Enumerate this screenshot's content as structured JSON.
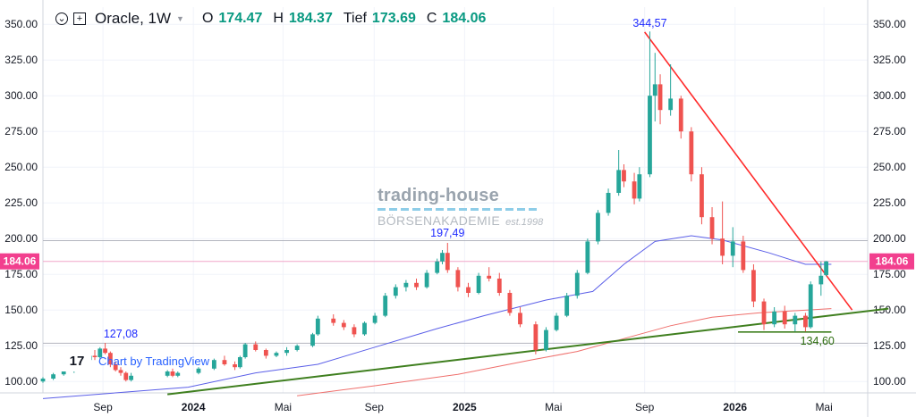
{
  "header": {
    "symbol": "Oracle, 1W",
    "open_label": "O",
    "open_value": "174.47",
    "high_label": "H",
    "high_value": "184.37",
    "low_label": "Tief",
    "low_value": "173.69",
    "close_label": "C",
    "close_value": "184.06"
  },
  "watermark": {
    "title": "trading-house",
    "subtitle": "BÖRSENAKADEMIE",
    "est": "est.1998"
  },
  "tv_badge": {
    "logo": "17",
    "text": "Chart by TradingView"
  },
  "colors": {
    "up": "#26a69a",
    "down": "#ef5350",
    "ma_blue": "#5b5fe8",
    "ma_red": "#ef6f6c",
    "resistance": "#ff2a2a",
    "support": "#3f7f1f",
    "price_line": "#f2a6c8",
    "price_label": "#f23f8e",
    "annotation_blue": "#1f2bff",
    "annotation_green": "#2e6e10"
  },
  "chart_data": {
    "type": "candlestick",
    "title": "Oracle, 1W",
    "last_price": 184.06,
    "ylim": [
      92,
      362
    ],
    "y_ticks": [
      "100.00",
      "125.00",
      "150.00",
      "175.00",
      "200.00",
      "225.00",
      "250.00",
      "275.00",
      "300.00",
      "325.00",
      "350.00"
    ],
    "x_tick_labels": [
      "Sep",
      "2024",
      "Mai",
      "Sep",
      "2025",
      "Mai",
      "Sep",
      "2026",
      "Mai"
    ],
    "x_axis_start": "2023-06-12",
    "x_axis_end": "2026-06-29",
    "x_ticks": [
      {
        "date": "2023-09-01",
        "label": "Sep"
      },
      {
        "date": "2024-01-01",
        "label": "2024"
      },
      {
        "date": "2024-05-01",
        "label": "Mai"
      },
      {
        "date": "2024-09-01",
        "label": "Sep"
      },
      {
        "date": "2025-01-01",
        "label": "2025"
      },
      {
        "date": "2025-05-01",
        "label": "Mai"
      },
      {
        "date": "2025-09-01",
        "label": "Sep"
      },
      {
        "date": "2026-01-01",
        "label": "2026"
      },
      {
        "date": "2026-05-01",
        "label": "Mai"
      }
    ],
    "annotations": [
      {
        "text": "344,57",
        "date": "2025-09-08",
        "value": 344.57,
        "color": "blue"
      },
      {
        "text": "197,49",
        "date": "2024-12-09",
        "value": 197.49,
        "color": "blue"
      },
      {
        "text": "127,08",
        "date": "2023-09-25",
        "value": 127.08,
        "color": "blue"
      },
      {
        "text": "134,60",
        "date": "2026-03-30",
        "value": 134.6,
        "color": "green"
      }
    ],
    "horizontal_lines": [
      {
        "value": 198.6,
        "color": "gray"
      },
      {
        "value": 126.8,
        "color": "gray"
      },
      {
        "value": 184.06,
        "color": "pink"
      }
    ],
    "trendlines": [
      {
        "name": "resistance",
        "from": [
          "2025-09-01",
          344.57
        ],
        "to": [
          "2026-06-08",
          150.0
        ]
      },
      {
        "name": "support",
        "from": [
          "2023-11-27",
          91.0
        ],
        "to": [
          "2026-07-27",
          151.0
        ]
      },
      {
        "name": "low-shelf",
        "from": [
          "2026-01-05",
          134.6
        ],
        "to": [
          "2026-05-11",
          134.6
        ]
      }
    ],
    "moving_averages": [
      {
        "color": "blue",
        "points": [
          [
            "2023-06-12",
            88
          ],
          [
            "2023-12-25",
            96
          ],
          [
            "2024-03-25",
            106
          ],
          [
            "2024-06-17",
            112
          ],
          [
            "2024-09-02",
            124
          ],
          [
            "2024-11-25",
            137
          ],
          [
            "2025-01-27",
            146
          ],
          [
            "2025-04-21",
            157
          ],
          [
            "2025-06-23",
            163
          ],
          [
            "2025-08-04",
            182
          ],
          [
            "2025-09-15",
            198
          ],
          [
            "2025-11-03",
            202
          ],
          [
            "2025-12-15",
            199
          ],
          [
            "2026-02-16",
            190
          ],
          [
            "2026-04-06",
            182
          ],
          [
            "2026-05-11",
            182
          ]
        ]
      },
      {
        "color": "red",
        "points": [
          [
            "2024-05-20",
            90
          ],
          [
            "2024-09-02",
            97
          ],
          [
            "2024-12-23",
            105
          ],
          [
            "2025-03-31",
            115
          ],
          [
            "2025-06-02",
            121
          ],
          [
            "2025-08-04",
            130
          ],
          [
            "2025-10-06",
            139
          ],
          [
            "2025-12-01",
            145
          ],
          [
            "2026-02-02",
            148
          ],
          [
            "2026-05-11",
            151
          ]
        ]
      }
    ],
    "series": [
      {
        "o": 100,
        "h": 103,
        "l": 99,
        "c": 102,
        "d": "2023-06-12"
      },
      {
        "o": 102,
        "h": 106,
        "l": 101,
        "c": 105,
        "d": "2023-06-26"
      },
      {
        "o": 105,
        "h": 108,
        "l": 104,
        "c": 107,
        "d": "2023-07-10"
      },
      {
        "o": 107,
        "h": 114,
        "l": 106,
        "c": 112,
        "d": "2023-07-24"
      },
      {
        "o": 112,
        "h": 116,
        "l": 110,
        "c": 115,
        "d": "2023-08-07"
      },
      {
        "o": 115,
        "h": 120,
        "l": 112,
        "c": 118,
        "d": "2023-08-14"
      },
      {
        "o": 118,
        "h": 122,
        "l": 115,
        "c": 117,
        "d": "2023-08-21"
      },
      {
        "o": 117,
        "h": 124,
        "l": 116,
        "c": 123,
        "d": "2023-08-28"
      },
      {
        "o": 123,
        "h": 127,
        "l": 119,
        "c": 120,
        "d": "2023-09-04"
      },
      {
        "o": 120,
        "h": 121,
        "l": 110,
        "c": 112,
        "d": "2023-09-11"
      },
      {
        "o": 112,
        "h": 114,
        "l": 107,
        "c": 108,
        "d": "2023-09-18"
      },
      {
        "o": 108,
        "h": 110,
        "l": 104,
        "c": 106,
        "d": "2023-09-25"
      },
      {
        "o": 106,
        "h": 107,
        "l": 100,
        "c": 101,
        "d": "2023-10-02"
      },
      {
        "o": 101,
        "h": 106,
        "l": 100,
        "c": 104,
        "d": "2023-10-09"
      },
      {
        "o": 104,
        "h": 108,
        "l": 103,
        "c": 107,
        "d": "2023-11-27"
      },
      {
        "o": 107,
        "h": 109,
        "l": 103,
        "c": 104,
        "d": "2023-12-04"
      },
      {
        "o": 104,
        "h": 107,
        "l": 103,
        "c": 106,
        "d": "2023-12-11"
      },
      {
        "o": 106,
        "h": 110,
        "l": 105,
        "c": 109,
        "d": "2024-01-08"
      },
      {
        "o": 109,
        "h": 116,
        "l": 108,
        "c": 115,
        "d": "2024-01-29"
      },
      {
        "o": 115,
        "h": 118,
        "l": 111,
        "c": 112,
        "d": "2024-02-12"
      },
      {
        "o": 112,
        "h": 114,
        "l": 108,
        "c": 110,
        "d": "2024-02-26"
      },
      {
        "o": 110,
        "h": 118,
        "l": 109,
        "c": 117,
        "d": "2024-03-04"
      },
      {
        "o": 117,
        "h": 127,
        "l": 116,
        "c": 126,
        "d": "2024-03-11"
      },
      {
        "o": 126,
        "h": 128,
        "l": 121,
        "c": 122,
        "d": "2024-03-25"
      },
      {
        "o": 122,
        "h": 123,
        "l": 116,
        "c": 118,
        "d": "2024-04-08"
      },
      {
        "o": 118,
        "h": 121,
        "l": 117,
        "c": 120,
        "d": "2024-04-22"
      },
      {
        "o": 120,
        "h": 124,
        "l": 118,
        "c": 122,
        "d": "2024-05-06"
      },
      {
        "o": 122,
        "h": 126,
        "l": 121,
        "c": 125,
        "d": "2024-05-20"
      },
      {
        "o": 125,
        "h": 134,
        "l": 124,
        "c": 133,
        "d": "2024-06-10"
      },
      {
        "o": 133,
        "h": 146,
        "l": 132,
        "c": 144,
        "d": "2024-06-17"
      },
      {
        "o": 144,
        "h": 147,
        "l": 139,
        "c": 141,
        "d": "2024-07-08"
      },
      {
        "o": 141,
        "h": 143,
        "l": 136,
        "c": 138,
        "d": "2024-07-22"
      },
      {
        "o": 138,
        "h": 140,
        "l": 131,
        "c": 133,
        "d": "2024-08-05"
      },
      {
        "o": 133,
        "h": 142,
        "l": 132,
        "c": 141,
        "d": "2024-08-19"
      },
      {
        "o": 141,
        "h": 148,
        "l": 140,
        "c": 146,
        "d": "2024-09-02"
      },
      {
        "o": 146,
        "h": 162,
        "l": 145,
        "c": 160,
        "d": "2024-09-16"
      },
      {
        "o": 160,
        "h": 168,
        "l": 158,
        "c": 166,
        "d": "2024-09-30"
      },
      {
        "o": 166,
        "h": 171,
        "l": 163,
        "c": 169,
        "d": "2024-10-14"
      },
      {
        "o": 169,
        "h": 172,
        "l": 164,
        "c": 166,
        "d": "2024-10-28"
      },
      {
        "o": 166,
        "h": 178,
        "l": 165,
        "c": 176,
        "d": "2024-11-11"
      },
      {
        "o": 176,
        "h": 186,
        "l": 175,
        "c": 184,
        "d": "2024-11-25"
      },
      {
        "o": 184,
        "h": 192,
        "l": 182,
        "c": 190,
        "d": "2024-12-02"
      },
      {
        "o": 190,
        "h": 197,
        "l": 176,
        "c": 178,
        "d": "2024-12-09"
      },
      {
        "o": 178,
        "h": 180,
        "l": 163,
        "c": 166,
        "d": "2024-12-23"
      },
      {
        "o": 166,
        "h": 169,
        "l": 159,
        "c": 162,
        "d": "2025-01-06"
      },
      {
        "o": 162,
        "h": 176,
        "l": 161,
        "c": 174,
        "d": "2025-01-20"
      },
      {
        "o": 174,
        "h": 180,
        "l": 170,
        "c": 172,
        "d": "2025-02-03"
      },
      {
        "o": 172,
        "h": 176,
        "l": 160,
        "c": 162,
        "d": "2025-02-17"
      },
      {
        "o": 162,
        "h": 164,
        "l": 146,
        "c": 148,
        "d": "2025-03-03"
      },
      {
        "o": 148,
        "h": 152,
        "l": 138,
        "c": 140,
        "d": "2025-03-17"
      },
      {
        "o": 140,
        "h": 142,
        "l": 119,
        "c": 122,
        "d": "2025-04-07"
      },
      {
        "o": 122,
        "h": 138,
        "l": 121,
        "c": 136,
        "d": "2025-04-21"
      },
      {
        "o": 136,
        "h": 148,
        "l": 135,
        "c": 146,
        "d": "2025-05-05"
      },
      {
        "o": 146,
        "h": 162,
        "l": 145,
        "c": 160,
        "d": "2025-05-19"
      },
      {
        "o": 160,
        "h": 178,
        "l": 158,
        "c": 176,
        "d": "2025-06-02"
      },
      {
        "o": 176,
        "h": 200,
        "l": 175,
        "c": 198,
        "d": "2025-06-16"
      },
      {
        "o": 198,
        "h": 220,
        "l": 196,
        "c": 218,
        "d": "2025-06-30"
      },
      {
        "o": 218,
        "h": 235,
        "l": 216,
        "c": 232,
        "d": "2025-07-14"
      },
      {
        "o": 232,
        "h": 262,
        "l": 230,
        "c": 248,
        "d": "2025-07-28"
      },
      {
        "o": 248,
        "h": 252,
        "l": 236,
        "c": 240,
        "d": "2025-08-04"
      },
      {
        "o": 240,
        "h": 246,
        "l": 224,
        "c": 228,
        "d": "2025-08-18"
      },
      {
        "o": 228,
        "h": 250,
        "l": 226,
        "c": 245,
        "d": "2025-08-25"
      },
      {
        "o": 245,
        "h": 345,
        "l": 243,
        "c": 300,
        "d": "2025-09-08"
      },
      {
        "o": 300,
        "h": 330,
        "l": 282,
        "c": 308,
        "d": "2025-09-15"
      },
      {
        "o": 308,
        "h": 315,
        "l": 280,
        "c": 290,
        "d": "2025-09-22"
      },
      {
        "o": 290,
        "h": 322,
        "l": 286,
        "c": 298,
        "d": "2025-10-06"
      },
      {
        "o": 298,
        "h": 300,
        "l": 270,
        "c": 275,
        "d": "2025-10-20"
      },
      {
        "o": 275,
        "h": 278,
        "l": 240,
        "c": 245,
        "d": "2025-11-03"
      },
      {
        "o": 245,
        "h": 250,
        "l": 210,
        "c": 215,
        "d": "2025-11-17"
      },
      {
        "o": 215,
        "h": 222,
        "l": 196,
        "c": 200,
        "d": "2025-12-01"
      },
      {
        "o": 200,
        "h": 226,
        "l": 182,
        "c": 188,
        "d": "2025-12-15"
      },
      {
        "o": 188,
        "h": 208,
        "l": 180,
        "c": 198,
        "d": "2025-12-29"
      },
      {
        "o": 198,
        "h": 202,
        "l": 176,
        "c": 178,
        "d": "2026-01-12"
      },
      {
        "o": 178,
        "h": 182,
        "l": 152,
        "c": 156,
        "d": "2026-01-26"
      },
      {
        "o": 156,
        "h": 158,
        "l": 136,
        "c": 140,
        "d": "2026-02-09"
      },
      {
        "o": 140,
        "h": 152,
        "l": 138,
        "c": 149,
        "d": "2026-02-23"
      },
      {
        "o": 149,
        "h": 153,
        "l": 137,
        "c": 140,
        "d": "2026-03-09"
      },
      {
        "o": 140,
        "h": 148,
        "l": 135,
        "c": 146,
        "d": "2026-03-23"
      },
      {
        "o": 146,
        "h": 148,
        "l": 135,
        "c": 138,
        "d": "2026-04-06"
      },
      {
        "o": 138,
        "h": 170,
        "l": 137,
        "c": 168,
        "d": "2026-04-13"
      },
      {
        "o": 168,
        "h": 184,
        "l": 160,
        "c": 174,
        "d": "2026-04-27"
      },
      {
        "o": 174.47,
        "h": 184.37,
        "l": 173.69,
        "c": 184.06,
        "d": "2026-05-04"
      }
    ]
  }
}
